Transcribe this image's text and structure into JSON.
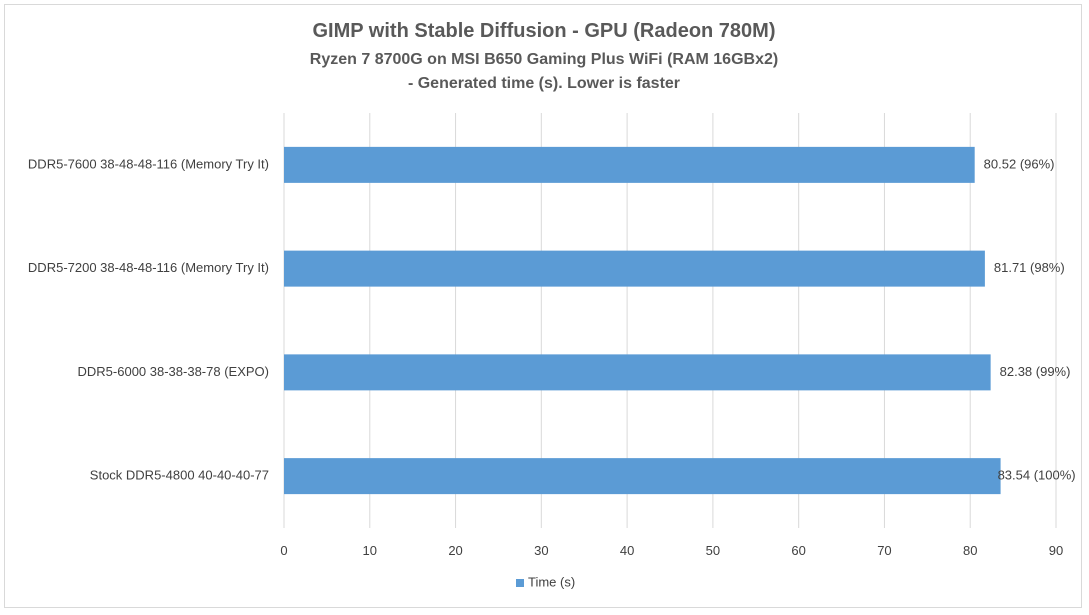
{
  "chart_data": {
    "type": "bar",
    "orientation": "horizontal",
    "title_lines": [
      "GIMP with Stable Diffusion - GPU (Radeon 780M)",
      "Ryzen 7 8700G on MSI B650 Gaming Plus WiFi (RAM 16GBx2)",
      "- Generated time (s). Lower is faster"
    ],
    "categories": [
      "DDR5-7600 38-48-48-116 (Memory Try It)",
      "DDR5-7200 38-48-48-116 (Memory Try It)",
      "DDR5-6000 38-38-38-78 (EXPO)",
      "Stock DDR5-4800 40-40-40-77"
    ],
    "series": [
      {
        "name": "Time (s)",
        "values": [
          80.52,
          81.71,
          82.38,
          83.54
        ],
        "data_labels": [
          "80.52 (96%)",
          "81.71 (98%)",
          "82.38 (99%)",
          "83.54 (100%)"
        ],
        "color": "#5b9bd5"
      }
    ],
    "xlim": [
      0,
      90
    ],
    "x_ticks": [
      "0",
      "10",
      "20",
      "30",
      "40",
      "50",
      "60",
      "70",
      "80",
      "90"
    ],
    "grid": "vertical",
    "legend_position": "bottom",
    "xlabel": "",
    "ylabel": ""
  },
  "colors": {
    "bar": "#5b9bd5",
    "gridline": "#d9d9d9",
    "text": "#404040",
    "title": "#595959"
  }
}
